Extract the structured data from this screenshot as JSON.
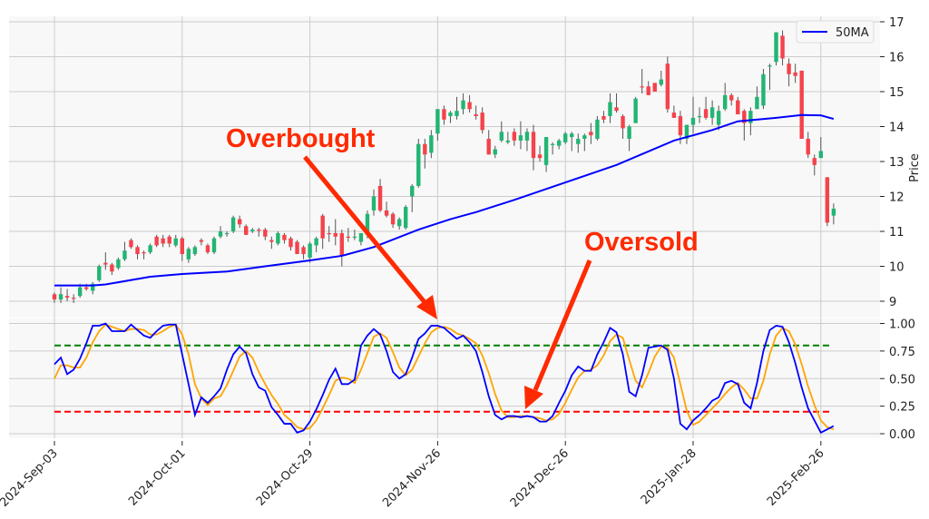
{
  "chart_data": [
    {
      "type": "candlestick",
      "ylabel": "Price",
      "ylim": [
        8.8,
        17.15
      ],
      "yticks": [
        "9",
        "10",
        "11",
        "12",
        "13",
        "14",
        "15",
        "16",
        "17"
      ],
      "grid": true,
      "legend": {
        "placement": "top-right",
        "entries": [
          {
            "name": "50MA",
            "color": "#0000ff"
          }
        ]
      },
      "colors": {
        "up": "#22b573",
        "down": "#f5424b",
        "wick": "#555555",
        "ma": "#0000ff"
      },
      "candles_ohlc": [
        [
          9.2,
          9.25,
          8.95,
          9.05
        ],
        [
          9.05,
          9.4,
          8.95,
          9.2
        ],
        [
          9.15,
          9.35,
          9.0,
          9.1
        ],
        [
          9.1,
          9.2,
          8.95,
          9.07
        ],
        [
          9.15,
          9.5,
          9.1,
          9.4
        ],
        [
          9.4,
          9.5,
          9.3,
          9.35
        ],
        [
          9.3,
          9.55,
          9.2,
          9.5
        ],
        [
          9.6,
          10.05,
          9.55,
          10.0
        ],
        [
          10.1,
          10.4,
          9.9,
          10.05
        ],
        [
          10.05,
          10.1,
          9.75,
          9.85
        ],
        [
          9.95,
          10.25,
          9.9,
          10.2
        ],
        [
          10.2,
          10.7,
          10.15,
          10.45
        ],
        [
          10.75,
          10.8,
          10.5,
          10.55
        ],
        [
          10.55,
          10.6,
          10.2,
          10.35
        ],
        [
          10.4,
          10.45,
          10.2,
          10.38
        ],
        [
          10.4,
          10.65,
          10.35,
          10.6
        ],
        [
          10.85,
          10.9,
          10.55,
          10.6
        ],
        [
          10.8,
          10.9,
          10.55,
          10.65
        ],
        [
          10.85,
          10.9,
          10.55,
          10.65
        ],
        [
          10.6,
          10.9,
          10.55,
          10.8
        ],
        [
          10.8,
          10.85,
          10.15,
          10.35
        ],
        [
          10.2,
          10.55,
          10.1,
          10.5
        ],
        [
          10.35,
          10.6,
          10.3,
          10.55
        ],
        [
          10.75,
          10.8,
          10.6,
          10.7
        ],
        [
          10.6,
          10.65,
          10.35,
          10.4
        ],
        [
          10.4,
          10.85,
          10.35,
          10.8
        ],
        [
          10.85,
          11.15,
          10.8,
          11.0
        ],
        [
          10.95,
          11.0,
          10.85,
          10.95
        ],
        [
          11.0,
          11.45,
          10.95,
          11.4
        ],
        [
          11.35,
          11.45,
          11.1,
          11.2
        ],
        [
          11.15,
          11.2,
          10.9,
          10.9
        ],
        [
          11.0,
          11.1,
          10.95,
          11.05
        ],
        [
          11.05,
          11.1,
          10.85,
          11.03
        ],
        [
          11.05,
          11.1,
          10.75,
          10.85
        ],
        [
          10.75,
          10.85,
          10.5,
          10.7
        ],
        [
          10.65,
          11.0,
          10.6,
          10.95
        ],
        [
          10.9,
          10.95,
          10.65,
          10.75
        ],
        [
          10.8,
          10.85,
          10.45,
          10.55
        ],
        [
          10.7,
          10.75,
          10.35,
          10.35
        ],
        [
          10.55,
          10.6,
          10.2,
          10.35
        ],
        [
          10.25,
          10.7,
          10.1,
          10.65
        ],
        [
          10.6,
          10.85,
          10.4,
          10.8
        ],
        [
          11.45,
          11.5,
          10.5,
          10.8
        ],
        [
          10.95,
          11.15,
          10.7,
          10.93
        ],
        [
          10.95,
          11.35,
          10.6,
          10.85
        ],
        [
          10.95,
          11.05,
          10.0,
          10.3
        ],
        [
          10.85,
          11.1,
          10.7,
          10.84
        ],
        [
          10.85,
          11.05,
          10.75,
          10.85
        ],
        [
          10.7,
          10.95,
          10.6,
          10.95
        ],
        [
          10.9,
          11.6,
          10.8,
          11.5
        ],
        [
          11.6,
          12.2,
          11.45,
          12.0
        ],
        [
          12.3,
          12.5,
          11.55,
          11.6
        ],
        [
          11.6,
          11.85,
          11.4,
          11.45
        ],
        [
          11.5,
          11.55,
          11.1,
          11.2
        ],
        [
          11.15,
          11.4,
          11.05,
          11.35
        ],
        [
          11.1,
          11.75,
          11.05,
          11.7
        ],
        [
          12.0,
          12.35,
          11.55,
          12.3
        ],
        [
          12.3,
          13.65,
          12.25,
          13.5
        ],
        [
          13.5,
          13.65,
          12.8,
          13.2
        ],
        [
          13.25,
          13.9,
          13.1,
          13.75
        ],
        [
          13.8,
          14.5,
          13.6,
          14.5
        ],
        [
          14.5,
          14.6,
          14.05,
          14.2
        ],
        [
          14.3,
          14.45,
          14.1,
          14.4
        ],
        [
          14.3,
          14.85,
          14.2,
          14.45
        ],
        [
          14.5,
          14.95,
          14.35,
          14.75
        ],
        [
          14.7,
          14.9,
          14.4,
          14.5
        ],
        [
          14.35,
          14.6,
          14.2,
          14.3
        ],
        [
          14.4,
          14.55,
          13.8,
          13.9
        ],
        [
          13.65,
          13.9,
          13.2,
          13.2
        ],
        [
          13.2,
          13.45,
          13.1,
          13.35
        ],
        [
          13.6,
          14.15,
          13.55,
          13.85
        ],
        [
          13.55,
          13.85,
          13.5,
          13.6
        ],
        [
          13.85,
          13.95,
          13.45,
          13.6
        ],
        [
          13.6,
          14.15,
          13.35,
          13.75
        ],
        [
          13.6,
          13.95,
          13.3,
          13.85
        ],
        [
          13.85,
          14.05,
          12.75,
          13.1
        ],
        [
          13.2,
          13.45,
          13.0,
          13.1
        ],
        [
          12.9,
          13.7,
          12.7,
          13.7
        ],
        [
          13.5,
          13.55,
          13.2,
          13.5
        ],
        [
          13.45,
          13.65,
          13.35,
          13.6
        ],
        [
          13.55,
          13.85,
          13.5,
          13.8
        ],
        [
          13.7,
          13.85,
          13.3,
          13.8
        ],
        [
          13.5,
          13.8,
          13.25,
          13.65
        ],
        [
          13.65,
          13.8,
          13.3,
          13.75
        ],
        [
          13.85,
          14.1,
          13.5,
          13.75
        ],
        [
          13.65,
          14.3,
          13.6,
          14.2
        ],
        [
          14.3,
          14.45,
          14.1,
          14.2
        ],
        [
          14.3,
          14.95,
          14.1,
          14.7
        ],
        [
          14.55,
          14.95,
          14.4,
          14.45
        ],
        [
          14.3,
          14.35,
          13.65,
          13.95
        ],
        [
          13.65,
          14.05,
          13.3,
          14.0
        ],
        [
          14.1,
          14.85,
          14.1,
          14.8
        ],
        [
          15.15,
          15.65,
          14.95,
          15.13
        ],
        [
          15.15,
          15.3,
          14.9,
          14.9
        ],
        [
          15.25,
          15.25,
          15.0,
          15.0
        ],
        [
          15.2,
          15.6,
          15.15,
          15.35
        ],
        [
          15.8,
          16.0,
          14.4,
          14.5
        ],
        [
          14.4,
          14.6,
          14.25,
          14.25
        ],
        [
          14.3,
          14.45,
          13.5,
          13.75
        ],
        [
          13.65,
          14.05,
          13.5,
          14.05
        ],
        [
          14.05,
          14.85,
          13.8,
          14.25
        ],
        [
          14.3,
          14.55,
          14.1,
          14.3
        ],
        [
          14.5,
          14.85,
          14.2,
          14.25
        ],
        [
          14.25,
          14.75,
          14.05,
          14.55
        ],
        [
          14.05,
          14.6,
          13.9,
          14.45
        ],
        [
          14.5,
          15.25,
          14.45,
          14.9
        ],
        [
          14.9,
          14.95,
          14.6,
          14.75
        ],
        [
          14.75,
          14.85,
          14.35,
          14.35
        ],
        [
          14.45,
          14.5,
          13.6,
          14.1
        ],
        [
          14.1,
          14.55,
          13.75,
          14.45
        ],
        [
          14.5,
          15.15,
          14.5,
          14.85
        ],
        [
          14.6,
          15.65,
          14.5,
          15.5
        ],
        [
          15.75,
          15.8,
          15.05,
          15.75
        ],
        [
          15.85,
          16.7,
          15.75,
          16.7
        ],
        [
          16.6,
          16.75,
          15.75,
          15.95
        ],
        [
          15.8,
          15.95,
          15.15,
          15.5
        ],
        [
          15.55,
          15.8,
          15.25,
          15.45
        ],
        [
          15.6,
          15.6,
          13.65,
          13.65
        ],
        [
          13.65,
          13.85,
          13.1,
          13.2
        ],
        [
          13.1,
          13.2,
          12.6,
          12.9
        ],
        [
          13.1,
          13.7,
          13.1,
          13.3
        ],
        [
          12.55,
          12.55,
          11.15,
          11.25
        ],
        [
          11.45,
          11.8,
          11.2,
          11.65
        ]
      ],
      "ma50": {
        "name": "50MA",
        "points_day_index_value": [
          [
            0,
            9.45
          ],
          [
            6,
            9.45
          ],
          [
            8,
            9.48
          ],
          [
            15,
            9.7
          ],
          [
            20,
            9.78
          ],
          [
            27,
            9.85
          ],
          [
            33,
            10.0
          ],
          [
            40,
            10.17
          ],
          [
            45,
            10.3
          ],
          [
            50,
            10.55
          ],
          [
            57,
            11.05
          ],
          [
            62,
            11.35
          ],
          [
            66,
            11.55
          ],
          [
            72,
            11.9
          ],
          [
            80,
            12.4
          ],
          [
            88,
            12.9
          ],
          [
            97,
            13.6
          ],
          [
            103,
            13.9
          ],
          [
            107,
            14.15
          ],
          [
            113,
            14.25
          ],
          [
            117,
            14.33
          ],
          [
            120,
            14.32
          ],
          [
            122,
            14.22
          ]
        ]
      }
    },
    {
      "type": "line",
      "ylim": [
        -0.05,
        1.05
      ],
      "yticks": [
        "0.00",
        "0.25",
        "0.50",
        "0.75",
        "1.00"
      ],
      "grid": true,
      "x_tick_labels": [
        "2024-Sep-03",
        "2024-Oct-01",
        "2024-Oct-29",
        "2024-Nov-26",
        "2024-Dec-26",
        "2025-Jan-28",
        "2025-Feb-26"
      ],
      "reference_lines": [
        {
          "value": 0.8,
          "color": "#008000",
          "style": "dashed"
        },
        {
          "value": 0.2,
          "color": "#ff0000",
          "style": "dashed"
        }
      ],
      "series": [
        {
          "color": "#0000ff",
          "values": [
            0.63,
            0.69,
            0.54,
            0.58,
            0.68,
            0.82,
            0.98,
            0.98,
            1.0,
            0.93,
            0.93,
            0.93,
            0.99,
            0.94,
            0.89,
            0.87,
            0.93,
            0.98,
            0.99,
            0.99,
            0.72,
            0.45,
            0.17,
            0.33,
            0.28,
            0.34,
            0.41,
            0.58,
            0.72,
            0.79,
            0.73,
            0.54,
            0.42,
            0.39,
            0.24,
            0.17,
            0.09,
            0.09,
            0.01,
            0.03,
            0.11,
            0.22,
            0.35,
            0.49,
            0.59,
            0.45,
            0.45,
            0.49,
            0.8,
            0.89,
            0.95,
            0.9,
            0.75,
            0.56,
            0.5,
            0.54,
            0.69,
            0.86,
            0.91,
            0.98,
            0.98,
            0.96,
            0.91,
            0.86,
            0.89,
            0.83,
            0.75,
            0.56,
            0.34,
            0.17,
            0.13,
            0.16,
            0.16,
            0.15,
            0.16,
            0.15,
            0.11,
            0.11,
            0.16,
            0.28,
            0.39,
            0.53,
            0.61,
            0.57,
            0.57,
            0.72,
            0.83,
            0.96,
            0.92,
            0.72,
            0.38,
            0.34,
            0.53,
            0.78,
            0.79,
            0.8,
            0.76,
            0.5,
            0.09,
            0.04,
            0.12,
            0.17,
            0.23,
            0.3,
            0.33,
            0.46,
            0.48,
            0.45,
            0.28,
            0.23,
            0.46,
            0.75,
            0.94,
            0.98,
            0.97,
            0.83,
            0.64,
            0.42,
            0.23,
            0.12,
            0.01,
            0.04,
            0.07
          ]
        },
        {
          "color": "#ffa500",
          "values": [
            0.5,
            0.62,
            0.62,
            0.6,
            0.6,
            0.69,
            0.83,
            0.93,
            0.99,
            0.97,
            0.95,
            0.93,
            0.95,
            0.95,
            0.94,
            0.9,
            0.9,
            0.93,
            0.97,
            0.99,
            0.9,
            0.72,
            0.45,
            0.32,
            0.26,
            0.32,
            0.34,
            0.44,
            0.57,
            0.7,
            0.75,
            0.69,
            0.56,
            0.45,
            0.35,
            0.27,
            0.17,
            0.12,
            0.06,
            0.04,
            0.05,
            0.12,
            0.23,
            0.35,
            0.48,
            0.51,
            0.5,
            0.46,
            0.58,
            0.73,
            0.88,
            0.91,
            0.87,
            0.74,
            0.6,
            0.53,
            0.58,
            0.7,
            0.82,
            0.92,
            0.96,
            0.97,
            0.95,
            0.91,
            0.89,
            0.86,
            0.82,
            0.71,
            0.55,
            0.36,
            0.21,
            0.15,
            0.15,
            0.16,
            0.16,
            0.15,
            0.14,
            0.12,
            0.13,
            0.18,
            0.28,
            0.4,
            0.51,
            0.57,
            0.58,
            0.62,
            0.71,
            0.84,
            0.9,
            0.87,
            0.67,
            0.48,
            0.42,
            0.55,
            0.7,
            0.79,
            0.78,
            0.69,
            0.45,
            0.21,
            0.08,
            0.11,
            0.17,
            0.23,
            0.29,
            0.36,
            0.42,
            0.46,
            0.4,
            0.32,
            0.32,
            0.48,
            0.72,
            0.89,
            0.96,
            0.93,
            0.81,
            0.63,
            0.43,
            0.26,
            0.12,
            0.06,
            0.04
          ]
        }
      ]
    }
  ],
  "annotations": {
    "overbought": {
      "text": "Overbought",
      "color": "#ff2a00"
    },
    "oversold": {
      "text": "Oversold",
      "color": "#ff2a00"
    }
  }
}
